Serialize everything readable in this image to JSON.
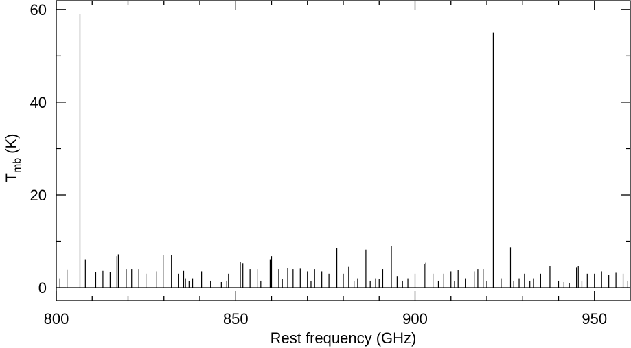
{
  "chart_data": {
    "type": "spike",
    "xlabel": "Rest frequency (GHz)",
    "ylabel": {
      "main": "T",
      "sub": "mb",
      "unit": "(K)"
    },
    "color": "#000000",
    "xlim": [
      800,
      960
    ],
    "ylim": [
      -2.8,
      61.9
    ],
    "xticks": [
      800,
      850,
      900,
      950
    ],
    "xminorticks": [
      810,
      820,
      830,
      840,
      860,
      870,
      880,
      890,
      910,
      920,
      930,
      940
    ],
    "yticks": [
      0,
      20,
      40,
      60
    ],
    "yminorticks": [
      10,
      30,
      50
    ],
    "x": [
      801,
      803,
      806.6,
      808.1,
      811,
      813,
      815,
      816.9,
      817.3,
      819.5,
      821,
      823,
      825,
      828,
      829.8,
      832.1,
      834,
      835.5,
      836,
      837,
      838,
      840.5,
      843,
      846,
      847.5,
      848,
      851.3,
      852,
      854,
      856,
      857,
      859.6,
      860,
      862,
      863,
      864.5,
      866,
      868,
      870,
      871,
      872,
      874,
      876,
      878.2,
      880,
      881.5,
      883,
      884,
      886.3,
      887.5,
      889,
      890,
      891,
      893.4,
      895,
      896.5,
      898,
      900,
      902.6,
      903,
      905,
      906.5,
      908,
      910,
      911,
      912,
      914,
      916.5,
      917.5,
      919,
      920,
      921.8,
      924,
      926.6,
      927.5,
      929,
      930.5,
      932,
      933,
      935,
      937.6,
      940,
      941.5,
      943,
      945,
      945.5,
      946.5,
      948,
      950,
      952,
      954,
      956,
      958,
      959.3
    ],
    "values": [
      2,
      3.9,
      59,
      6,
      3.4,
      3.6,
      3.3,
      6.8,
      7.2,
      4,
      4,
      4,
      3,
      3.5,
      7,
      7,
      3,
      3.6,
      2,
      1.5,
      2,
      3.5,
      1.5,
      1.2,
      1.5,
      3,
      5.5,
      5.3,
      4,
      4,
      1.5,
      6,
      6.8,
      4,
      1.8,
      4.2,
      4,
      4.1,
      3.5,
      1.5,
      4,
      3.5,
      3,
      8.6,
      3,
      4.5,
      1.5,
      2,
      8.2,
      1.5,
      2,
      1.8,
      4,
      9,
      2.5,
      1.5,
      2,
      3,
      5.2,
      5.4,
      3,
      1.5,
      3,
      3.5,
      1.5,
      3.8,
      2,
      3.5,
      4,
      4,
      1.5,
      55,
      2,
      8.7,
      1.5,
      2,
      3,
      1.5,
      2,
      3,
      4.7,
      1.5,
      1.2,
      1,
      4.4,
      4.6,
      1.5,
      3,
      3,
      3.5,
      2.8,
      3.2,
      3,
      1.5
    ]
  }
}
